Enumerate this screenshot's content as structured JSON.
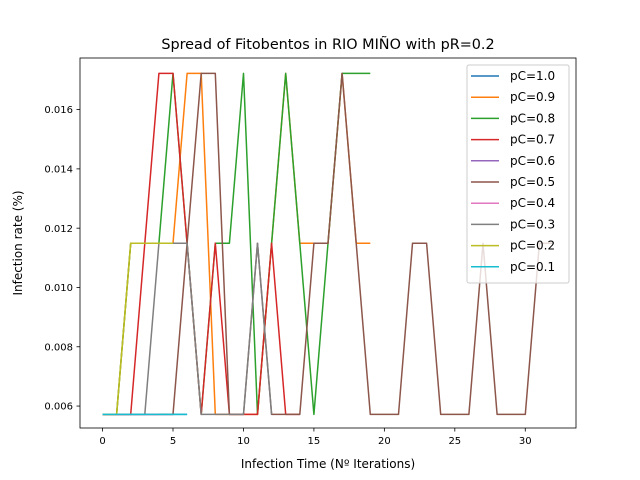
{
  "chart_data": {
    "type": "line",
    "title": "Spread of Fitobentos in RIO MIÑO with pR=0.2",
    "xlabel": "Infection Time (Nº Iterations)",
    "ylabel": "Infection rate (%)",
    "xlim": [
      -1.6,
      33.6
    ],
    "ylim": [
      0.00526,
      0.01774
    ],
    "xticks": [
      0,
      5,
      10,
      15,
      20,
      25,
      30
    ],
    "yticks": [
      0.006,
      0.008,
      0.01,
      0.012,
      0.014,
      0.016
    ],
    "ytick_labels": [
      "0.006",
      "0.008",
      "0.010",
      "0.012",
      "0.014",
      "0.016"
    ],
    "grid": false,
    "legend_position": "top-right",
    "series": [
      {
        "name": "pC=1.0",
        "color": "#1f77b4",
        "x": [
          0,
          1,
          2,
          3,
          4,
          5,
          6
        ],
        "y": [
          0.00572,
          0.00572,
          0.00572,
          0.00572,
          0.00572,
          0.00572,
          0.00572
        ]
      },
      {
        "name": "pC=0.9",
        "color": "#ff7f0e",
        "x": [
          0,
          1,
          2,
          3,
          4,
          5,
          6,
          7,
          8,
          9,
          10,
          11,
          12,
          13,
          14,
          15,
          16,
          17,
          18,
          19
        ],
        "y": [
          0.00572,
          0.00572,
          0.01149,
          0.01149,
          0.01149,
          0.01149,
          0.01722,
          0.01722,
          0.00572,
          0.00572,
          0.00572,
          0.00572,
          0.01149,
          0.01722,
          0.01149,
          0.01149,
          0.01149,
          0.01722,
          0.01149,
          0.01149
        ]
      },
      {
        "name": "pC=0.8",
        "color": "#2ca02c",
        "x": [
          0,
          1,
          2,
          3,
          4,
          5,
          6,
          7,
          8,
          9,
          10,
          11,
          12,
          13,
          14,
          15,
          16,
          17,
          18,
          19
        ],
        "y": [
          0.00572,
          0.00572,
          0.01149,
          0.01149,
          0.01149,
          0.01722,
          0.01149,
          0.00572,
          0.01149,
          0.01149,
          0.01722,
          0.00572,
          0.01149,
          0.01722,
          0.01149,
          0.00572,
          0.01149,
          0.01722,
          0.01722,
          0.01722
        ]
      },
      {
        "name": "pC=0.7",
        "color": "#d62728",
        "x": [
          0,
          1,
          2,
          3,
          4,
          5,
          6,
          7,
          8,
          9,
          10,
          11,
          12,
          13,
          14
        ],
        "y": [
          0.00572,
          0.00572,
          0.00572,
          0.01149,
          0.01722,
          0.01722,
          0.01149,
          0.00572,
          0.01149,
          0.00572,
          0.00572,
          0.00572,
          0.01149,
          0.00572,
          0.00572
        ]
      },
      {
        "name": "pC=0.6",
        "color": "#9467bd",
        "x": [
          0,
          1,
          2,
          3,
          4,
          5
        ],
        "y": [
          0.00572,
          0.00572,
          0.00572,
          0.00572,
          0.00572,
          0.00572
        ]
      },
      {
        "name": "pC=0.5",
        "color": "#8c564b",
        "x": [
          0,
          1,
          2,
          3,
          4,
          5,
          6,
          7,
          8,
          9,
          10,
          11,
          12,
          13,
          14,
          15,
          16,
          17,
          18,
          19,
          20,
          21,
          22,
          23,
          24,
          25,
          26,
          27,
          28,
          29,
          30,
          31,
          32
        ],
        "y": [
          0.00572,
          0.00572,
          0.00572,
          0.00572,
          0.00572,
          0.00572,
          0.01149,
          0.01722,
          0.01722,
          0.00572,
          0.00572,
          0.01149,
          0.00572,
          0.00572,
          0.00572,
          0.01149,
          0.01149,
          0.01722,
          0.01149,
          0.00572,
          0.00572,
          0.00572,
          0.01149,
          0.01149,
          0.00572,
          0.00572,
          0.00572,
          0.01149,
          0.00572,
          0.00572,
          0.00572,
          0.01149,
          0.01149
        ]
      },
      {
        "name": "pC=0.4",
        "color": "#e377c2",
        "x": [
          0,
          1,
          2,
          3,
          4
        ],
        "y": [
          0.00572,
          0.00572,
          0.00572,
          0.00572,
          0.00572
        ]
      },
      {
        "name": "pC=0.3",
        "color": "#7f7f7f",
        "x": [
          0,
          1,
          2,
          3,
          4,
          5,
          6,
          7,
          8,
          9,
          10,
          11,
          12
        ],
        "y": [
          0.00572,
          0.00572,
          0.00572,
          0.00572,
          0.01149,
          0.01149,
          0.01149,
          0.00572,
          0.00572,
          0.00572,
          0.00572,
          0.01149,
          0.00572
        ]
      },
      {
        "name": "pC=0.2",
        "color": "#bcbd22",
        "x": [
          0,
          1,
          2,
          3,
          4,
          5
        ],
        "y": [
          0.00572,
          0.00572,
          0.01149,
          0.01149,
          0.01149,
          0.01149
        ]
      },
      {
        "name": "pC=0.1",
        "color": "#17becf",
        "x": [
          0,
          1,
          2,
          3,
          4,
          5,
          6
        ],
        "y": [
          0.00572,
          0.00572,
          0.00572,
          0.00572,
          0.00572,
          0.00572,
          0.00572
        ]
      }
    ]
  }
}
